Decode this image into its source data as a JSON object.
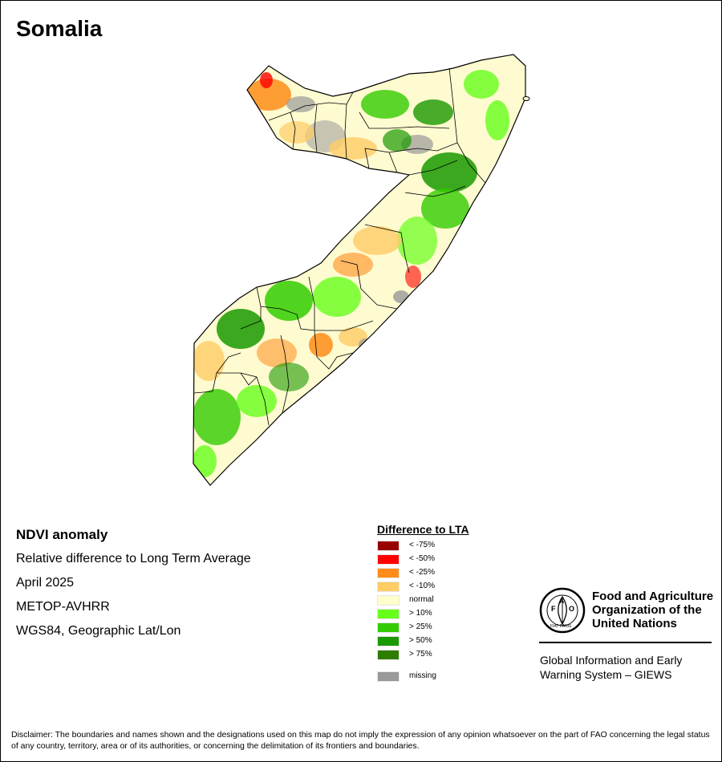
{
  "map": {
    "title": "Somalia"
  },
  "info": {
    "heading": "NDVI anomaly",
    "subtitle": "Relative difference to Long Term Average",
    "period": "April 2025",
    "sensor": "METOP-AVHRR",
    "projection": "WGS84, Geographic Lat/Lon"
  },
  "legend": {
    "title": "Difference to LTA",
    "items": [
      {
        "label": "< -75%",
        "color": "#990000"
      },
      {
        "label": "< -50%",
        "color": "#ff0000"
      },
      {
        "label": "< -25%",
        "color": "#ff8c1a"
      },
      {
        "label": "< -10%",
        "color": "#ffcc66"
      },
      {
        "label": "normal",
        "color": "#ffffcc"
      },
      {
        "label": "> 10%",
        "color": "#66ff1a"
      },
      {
        "label": "> 25%",
        "color": "#33cc00"
      },
      {
        "label": "> 50%",
        "color": "#1a9900"
      },
      {
        "label": "> 75%",
        "color": "#2e7d00"
      }
    ],
    "missing": {
      "label": "missing",
      "color": "#999999"
    }
  },
  "organization": {
    "logo_text_top": "FAO",
    "logo_text_bottom": "FIAT PANIS",
    "name_line1": "Food and Agriculture",
    "name_line2": "Organization of the",
    "name_line3": "United Nations",
    "system_line1": "Global Information and Early",
    "system_line2": "Warning System – GIEWS"
  },
  "disclaimer": "Disclaimer: The boundaries and names shown and the designations used on this map do not imply the expression of any opinion whatsoever on the part of FAO concerning the legal status of any country, territory, area or of its authorities, or concerning the delimitation of its frontiers and boundaries."
}
